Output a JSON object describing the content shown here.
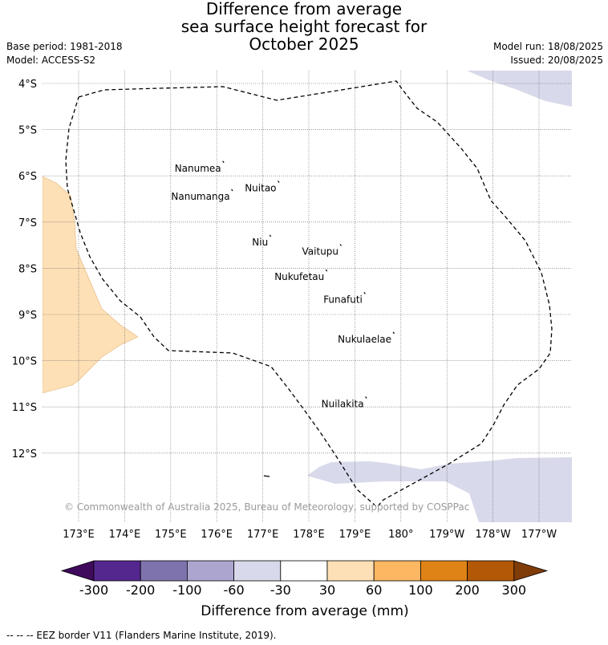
{
  "title": {
    "line1": "Difference from average",
    "line2": "sea surface height forecast for",
    "line3": "October 2025"
  },
  "meta": {
    "base_period": "Base period: 1981-2018",
    "model": "Model: ACCESS-S2",
    "model_run": "Model run: 18/08/2025",
    "issued": "Issued: 20/08/2025"
  },
  "map": {
    "lat_labels": [
      "4°S",
      "5°S",
      "6°S",
      "7°S",
      "8°S",
      "9°S",
      "10°S",
      "11°S",
      "12°S"
    ],
    "lat_values": [
      -4,
      -5,
      -6,
      -7,
      -8,
      -9,
      -10,
      -11,
      -12
    ],
    "lon_labels": [
      "173°E",
      "174°E",
      "175°E",
      "176°E",
      "177°E",
      "178°E",
      "179°E",
      "180°",
      "179°W",
      "178°W",
      "177°W"
    ],
    "lon_values": [
      173,
      174,
      175,
      176,
      177,
      178,
      179,
      180,
      181,
      182,
      183
    ],
    "islands": [
      {
        "name": "Nanumea",
        "lon": 176.13,
        "lat": -5.68
      },
      {
        "name": "Nuitao",
        "lon": 177.33,
        "lat": -6.11
      },
      {
        "name": "Nanumanga",
        "lon": 176.32,
        "lat": -6.29
      },
      {
        "name": "Niu",
        "lon": 177.15,
        "lat": -7.28
      },
      {
        "name": "Vaitupu",
        "lon": 178.68,
        "lat": -7.48
      },
      {
        "name": "Nukufetau",
        "lon": 178.37,
        "lat": -8.03
      },
      {
        "name": "Funafuti",
        "lon": 179.2,
        "lat": -8.52
      },
      {
        "name": "Nukulaelae",
        "lon": 179.83,
        "lat": -9.38
      },
      {
        "name": "Nuilakita",
        "lon": 179.23,
        "lat": -10.78
      }
    ],
    "copyright": "© Commonwealth of Australia 2025, Bureau of Meteorology, supported by COSPPac",
    "colors": {
      "positive_light": "#fde0b6",
      "negative_light": "#d8d9ea",
      "eez_border": "#000000"
    }
  },
  "colorbar": {
    "ticks": [
      "-300",
      "-200",
      "-100",
      "-60",
      "-30",
      "30",
      "60",
      "100",
      "200",
      "300"
    ],
    "colors": [
      "#54278f",
      "#7f73ad",
      "#aba5cf",
      "#d8d9ea",
      "#ffffff",
      "#fde0b6",
      "#fdb662",
      "#e08317",
      "#b35807"
    ],
    "under_color": "#3f0a5c",
    "over_color": "#7f3b08",
    "label": "Difference from average (mm)"
  },
  "footer": "--  --  -- EEZ border V11 (Flanders Marine Institute, 2019)."
}
